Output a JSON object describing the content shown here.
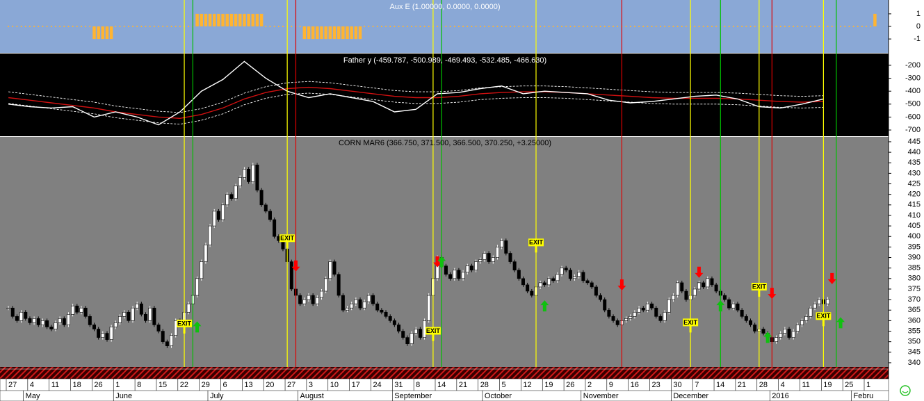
{
  "chart_data": [
    {
      "type": "bar",
      "title": "Aux E (1.00000, 0.0000, 0.0000)",
      "color": "#ffb432",
      "ylim": [
        -2.1,
        2.1
      ],
      "yticks": [
        -1,
        0,
        1
      ],
      "values": [
        0,
        0,
        0,
        0,
        0,
        0,
        0,
        0,
        0,
        0,
        0,
        0,
        0,
        0,
        0,
        0,
        0,
        0,
        0,
        0,
        -1,
        -1,
        -1,
        -1,
        -1,
        0,
        0,
        0,
        0,
        0,
        0,
        0,
        0,
        0,
        0,
        0,
        0,
        0,
        0,
        0,
        0,
        0,
        0,
        0,
        1,
        1,
        1,
        1,
        1,
        1,
        1,
        1,
        1,
        1,
        1,
        1,
        1,
        1,
        1,
        1,
        0,
        0,
        0,
        0,
        0,
        0,
        0,
        0,
        0,
        -1,
        -1,
        -1,
        -1,
        -1,
        -1,
        -1,
        -1,
        -1,
        -1,
        -1,
        -1,
        -1,
        -1,
        0,
        0,
        0,
        0,
        0,
        0,
        0,
        0,
        0,
        0,
        0,
        0,
        0,
        0,
        0,
        0,
        0,
        0,
        0,
        0,
        0,
        0,
        0,
        0,
        0,
        0,
        0,
        0,
        0,
        0,
        0,
        0,
        0,
        0,
        0,
        0,
        0,
        0,
        0,
        0,
        0,
        0,
        0,
        0,
        0,
        0,
        0,
        0,
        0,
        0,
        0,
        0,
        0,
        0,
        0,
        0,
        0,
        0,
        0,
        0,
        0,
        0,
        0,
        0,
        0,
        0,
        0,
        0,
        0,
        0,
        0,
        0,
        0,
        0,
        0,
        0,
        0,
        0,
        0,
        0,
        0,
        0,
        0,
        0,
        0,
        0,
        0,
        0,
        0,
        0,
        0,
        0,
        0,
        0,
        0,
        0,
        0,
        0,
        0,
        0,
        0,
        0,
        0,
        0,
        0,
        0,
        0,
        0,
        0,
        0,
        0,
        0,
        0,
        0,
        0,
        0,
        0,
        0,
        0,
        1,
        null,
        null,
        null,
        null,
        null,
        null,
        null,
        null,
        null,
        null,
        null,
        null,
        null
      ]
    },
    {
      "type": "line",
      "title": "Father y (-459.787, -500.989, -469.493, -532.485, -466.630)",
      "ylim": [
        -748,
        -109
      ],
      "yticks": [
        -700,
        -600,
        -500,
        -400,
        -300,
        -200
      ],
      "x": [
        0,
        5,
        10,
        15,
        20,
        25,
        30,
        35,
        40,
        45,
        50,
        55,
        60,
        65,
        70,
        75,
        80,
        85,
        90,
        95,
        100,
        105,
        110,
        115,
        120,
        125,
        130,
        135,
        140,
        145,
        150,
        155,
        160,
        165,
        170,
        175,
        180,
        185,
        190
      ],
      "series": [
        {
          "name": "upper",
          "color": "#ffffff",
          "dashed": true,
          "values": [
            -405,
            -425,
            -445,
            -465,
            -485,
            -515,
            -535,
            -555,
            -565,
            -535,
            -485,
            -415,
            -365,
            -335,
            -325,
            -335,
            -355,
            -375,
            -395,
            -405,
            -405,
            -395,
            -375,
            -365,
            -360,
            -360,
            -365,
            -375,
            -385,
            -395,
            -405,
            -410,
            -410,
            -410,
            -415,
            -425,
            -435,
            -440,
            -435
          ]
        },
        {
          "name": "lower",
          "color": "#ffffff",
          "dashed": true,
          "values": [
            -495,
            -515,
            -535,
            -555,
            -575,
            -605,
            -625,
            -645,
            -655,
            -625,
            -575,
            -505,
            -455,
            -425,
            -415,
            -425,
            -445,
            -465,
            -485,
            -495,
            -495,
            -485,
            -465,
            -455,
            -450,
            -450,
            -455,
            -465,
            -475,
            -485,
            -495,
            -500,
            -500,
            -500,
            -505,
            -515,
            -525,
            -530,
            -525
          ]
        },
        {
          "name": "average",
          "color": "#d01010",
          "dashed": false,
          "values": [
            -450,
            -470,
            -490,
            -510,
            -530,
            -560,
            -580,
            -600,
            -610,
            -580,
            -530,
            -460,
            -410,
            -380,
            -370,
            -380,
            -400,
            -420,
            -440,
            -450,
            -450,
            -440,
            -420,
            -410,
            -405,
            -405,
            -410,
            -420,
            -430,
            -440,
            -450,
            -455,
            -455,
            -455,
            -460,
            -470,
            -480,
            -485,
            -480
          ]
        },
        {
          "name": "father",
          "color": "#ffffff",
          "dashed": false,
          "values": [
            -500,
            -520,
            -530,
            -520,
            -600,
            -560,
            -600,
            -660,
            -560,
            -400,
            -310,
            -170,
            -300,
            -400,
            -450,
            -420,
            -450,
            -480,
            -560,
            -540,
            -420,
            -410,
            -380,
            -360,
            -420,
            -400,
            -410,
            -420,
            -470,
            -490,
            -480,
            -460,
            -440,
            -430,
            -460,
            -520,
            -530,
            -500,
            -460
          ]
        }
      ]
    },
    {
      "type": "candlestick",
      "title": "CORN MAR6 (366.750, 371.500, 366.500, 370.250, +3.25000)",
      "ylim": [
        338,
        447.3
      ],
      "yticks": [
        340,
        345,
        350,
        355,
        360,
        365,
        370,
        375,
        380,
        385,
        390,
        395,
        400,
        405,
        410,
        415,
        420,
        425,
        430,
        435,
        440,
        445
      ],
      "categories": [
        "27",
        null,
        null,
        null,
        null,
        "4",
        null,
        null,
        null,
        null,
        "11",
        null,
        null,
        null,
        null,
        "18",
        null,
        null,
        null,
        null,
        "26",
        null,
        null,
        null,
        null,
        "1",
        null,
        null,
        null,
        null,
        "8",
        null,
        null,
        null,
        null,
        "15",
        null,
        null,
        null,
        null,
        "22",
        null,
        null,
        null,
        null,
        "29",
        null,
        null,
        null,
        null,
        "6",
        null,
        null,
        null,
        null,
        "13",
        null,
        null,
        null,
        null,
        "20",
        null,
        null,
        null,
        null,
        "27",
        null,
        null,
        null,
        null,
        "3",
        null,
        null,
        null,
        null,
        "10",
        null,
        null,
        null,
        null,
        "17",
        null,
        null,
        null,
        null,
        "24",
        null,
        null,
        null,
        null,
        "31",
        null,
        null,
        null,
        null,
        "8",
        null,
        null,
        null,
        null,
        "14",
        null,
        null,
        null,
        null,
        "21",
        null,
        null,
        null,
        null,
        "28",
        null,
        null,
        null,
        null,
        "5",
        null,
        null,
        null,
        null,
        "12",
        null,
        null,
        null,
        null,
        "19",
        null,
        null,
        null,
        null,
        "26",
        null,
        null,
        null,
        null,
        "2",
        null,
        null,
        null,
        null,
        "9",
        null,
        null,
        null,
        null,
        "16",
        null,
        null,
        null,
        null,
        "23",
        null,
        null,
        null,
        null,
        "30",
        null,
        null,
        null,
        null,
        "7",
        null,
        null,
        null,
        null,
        "14",
        null,
        null,
        null,
        null,
        "21",
        null,
        null,
        null,
        null,
        "28",
        null,
        null,
        null,
        null,
        "4",
        null,
        null,
        null,
        null,
        "11",
        null,
        null,
        null,
        null,
        "19",
        null,
        null,
        null,
        null,
        "25",
        null,
        null,
        null,
        null,
        "1",
        null,
        null,
        null,
        null
      ],
      "months": [
        null,
        null,
        null,
        null,
        "May",
        null,
        null,
        null,
        null,
        null,
        null,
        null,
        null,
        null,
        null,
        null,
        null,
        null,
        null,
        null,
        null,
        null,
        null,
        null,
        null,
        "June",
        null,
        null,
        null,
        null,
        null,
        null,
        null,
        null,
        null,
        null,
        null,
        null,
        null,
        null,
        null,
        null,
        null,
        null,
        null,
        null,
        null,
        "July",
        null,
        null,
        null,
        null,
        null,
        null,
        null,
        null,
        null,
        null,
        null,
        null,
        null,
        null,
        null,
        null,
        null,
        null,
        null,
        null,
        "August",
        null,
        null,
        null,
        null,
        null,
        null,
        null,
        null,
        null,
        null,
        null,
        null,
        null,
        null,
        null,
        null,
        null,
        null,
        null,
        null,
        null,
        "September",
        null,
        null,
        null,
        null,
        null,
        null,
        null,
        null,
        null,
        null,
        null,
        null,
        null,
        null,
        null,
        null,
        null,
        null,
        null,
        null,
        "October",
        null,
        null,
        null,
        null,
        null,
        null,
        null,
        null,
        null,
        null,
        null,
        null,
        null,
        null,
        null,
        null,
        null,
        null,
        null,
        null,
        null,
        null,
        "November",
        null,
        null,
        null,
        null,
        null,
        null,
        null,
        null,
        null,
        null,
        null,
        null,
        null,
        null,
        null,
        null,
        null,
        null,
        null,
        null,
        "December",
        null,
        null,
        null,
        null,
        null,
        null,
        null,
        null,
        null,
        null,
        null,
        null,
        null,
        null,
        null,
        null,
        null,
        null,
        null,
        null,
        null,
        null,
        "2016",
        null,
        null,
        null,
        null,
        null,
        null,
        null,
        null,
        null,
        null,
        null,
        null,
        null,
        null,
        null,
        null,
        null,
        null,
        "Febru",
        null,
        null,
        null,
        null,
        null
      ],
      "values": [
        366,
        362,
        360,
        364,
        361,
        359,
        361,
        358,
        360,
        357,
        356,
        359,
        361,
        358,
        363,
        367,
        364,
        366,
        362,
        358,
        356,
        352,
        354,
        351,
        357,
        359,
        362,
        364,
        360,
        366,
        368,
        363,
        360,
        366,
        358,
        355,
        350,
        348,
        353,
        360,
        358,
        364,
        368,
        372,
        380,
        388,
        396,
        405,
        412,
        408,
        415,
        420,
        418,
        424,
        428,
        432,
        426,
        434,
        422,
        415,
        412,
        408,
        400,
        398,
        394,
        388,
        375,
        372,
        368,
        370,
        372,
        368,
        371,
        374,
        380,
        388,
        382,
        372,
        365,
        366,
        368,
        370,
        366,
        369,
        372,
        368,
        365,
        364,
        362,
        360,
        358,
        355,
        352,
        349,
        354,
        356,
        352,
        360,
        372,
        380,
        390,
        386,
        382,
        380,
        384,
        380,
        383,
        386,
        384,
        388,
        389,
        392,
        388,
        390,
        395,
        398,
        392,
        388,
        384,
        380,
        377,
        374,
        372,
        376,
        378,
        377,
        380,
        379,
        382,
        385,
        384,
        380,
        381,
        383,
        379,
        378,
        376,
        372,
        370,
        365,
        362,
        360,
        358,
        360,
        361,
        362,
        364,
        366,
        365,
        368,
        366,
        362,
        360,
        364,
        370,
        372,
        378,
        374,
        370,
        372,
        375,
        378,
        376,
        380,
        377,
        374,
        372,
        370,
        366,
        368,
        365,
        362,
        360,
        358,
        355,
        356,
        354,
        352,
        350,
        352,
        354,
        356,
        352,
        355,
        358,
        360,
        362,
        366,
        368,
        370,
        368,
        370.25,
        null,
        null,
        null,
        null,
        null,
        null,
        null,
        null,
        null,
        null,
        null,
        null,
        null
      ],
      "signals": [
        {
          "at": 41,
          "color": "#ffff00"
        },
        {
          "at": 43,
          "color": "#00c000"
        },
        {
          "at": 65,
          "color": "#ffff00"
        },
        {
          "at": 67,
          "color": "#e00000"
        },
        {
          "at": 99,
          "color": "#ffff00"
        },
        {
          "at": 101,
          "color": "#00c000"
        },
        {
          "at": 123,
          "color": "#ffff00"
        },
        {
          "at": 143,
          "color": "#e00000"
        },
        {
          "at": 159,
          "color": "#ffff00"
        },
        {
          "at": 166,
          "color": "#00c000"
        },
        {
          "at": 175,
          "color": "#ffff00"
        },
        {
          "at": 178,
          "color": "#e00000"
        },
        {
          "at": 190,
          "color": "#ffff00"
        },
        {
          "at": 193,
          "color": "#00c000"
        }
      ],
      "annotations": [
        {
          "text": "EXIT",
          "at": 65,
          "y": 399
        },
        {
          "text": "EXIT",
          "at": 41,
          "y": 358.5
        },
        {
          "text": "EXIT",
          "at": 99,
          "y": 355
        },
        {
          "text": "EXIT",
          "at": 123,
          "y": 397
        },
        {
          "text": "EXIT",
          "at": 159,
          "y": 359
        },
        {
          "text": "EXIT",
          "at": 175,
          "y": 376
        },
        {
          "text": "EXIT",
          "at": 190,
          "y": 362
        }
      ],
      "arrows": [
        {
          "at": 67,
          "y": 384,
          "direction": "down",
          "color": "#ff0000"
        },
        {
          "at": 100,
          "y": 386,
          "direction": "down",
          "color": "#ff0000"
        },
        {
          "at": 143,
          "y": 375,
          "direction": "down",
          "color": "#ff0000"
        },
        {
          "at": 161,
          "y": 381,
          "direction": "down",
          "color": "#ff0000"
        },
        {
          "at": 178,
          "y": 371,
          "direction": "down",
          "color": "#ff0000"
        },
        {
          "at": 192,
          "y": 378,
          "direction": "down",
          "color": "#ff0000"
        },
        {
          "at": 44,
          "y": 359,
          "direction": "up",
          "color": "#10c010"
        },
        {
          "at": 101,
          "y": 390,
          "direction": "up",
          "color": "#10c010"
        },
        {
          "at": 125,
          "y": 369,
          "direction": "up",
          "color": "#10c010"
        },
        {
          "at": 166,
          "y": 369,
          "direction": "up",
          "color": "#10c010"
        },
        {
          "at": 177,
          "y": 354,
          "direction": "up",
          "color": "#10c010"
        },
        {
          "at": 194,
          "y": 361,
          "direction": "up",
          "color": "#10c010"
        }
      ]
    }
  ]
}
